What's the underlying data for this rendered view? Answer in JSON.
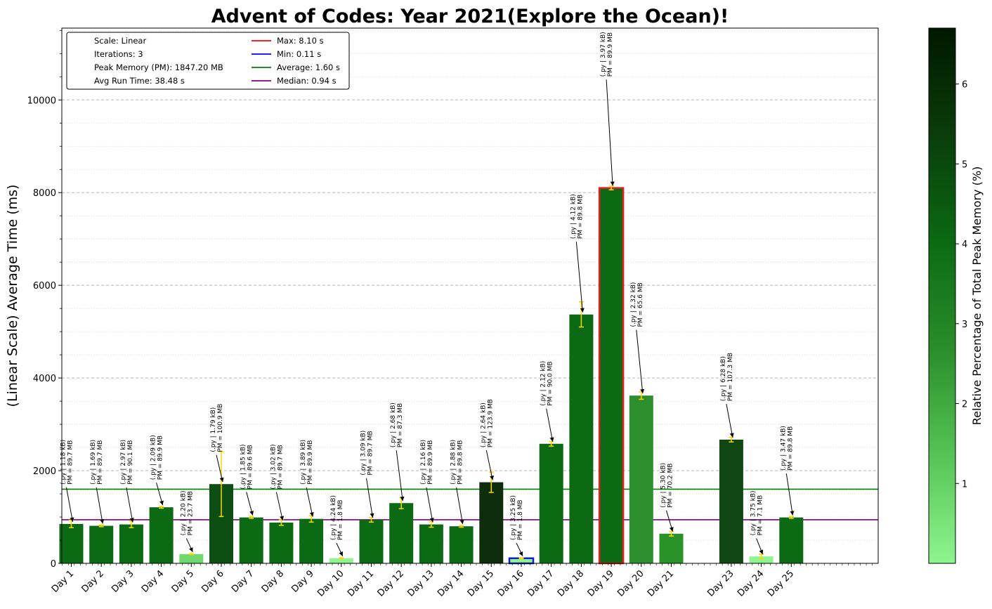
{
  "chart_data": {
    "type": "bar",
    "title": "Advent of Codes: Year 2021(Explore the Ocean)!",
    "ylabel": "(Linear Scale) Average Time (ms)",
    "xlabel": "",
    "ylim": [
      0,
      11550
    ],
    "y_ticks": [
      0,
      2000,
      4000,
      6000,
      8000,
      10000
    ],
    "categories": [
      "Day 1",
      "Day 2",
      "Day 3",
      "Day 4",
      "Day 5",
      "Day 6",
      "Day 7",
      "Day 8",
      "Day 9",
      "Day 10",
      "Day 11",
      "Day 12",
      "Day 13",
      "Day 14",
      "Day 15",
      "Day 16",
      "Day 17",
      "Day 18",
      "Day 19",
      "Day 20",
      "Day 21",
      "Day 23",
      "Day 24",
      "Day 25"
    ],
    "slots": [
      1,
      2,
      3,
      4,
      5,
      6,
      7,
      8,
      9,
      10,
      11,
      12,
      13,
      14,
      15,
      16,
      17,
      18,
      19,
      20,
      21,
      23,
      24,
      25
    ],
    "values": [
      850,
      810,
      840,
      1210,
      200,
      1710,
      990,
      880,
      960,
      110,
      940,
      1300,
      840,
      800,
      1750,
      110,
      2580,
      5370,
      8100,
      3620,
      640,
      2670,
      150,
      990
    ],
    "errors": [
      80,
      20,
      70,
      20,
      10,
      700,
      20,
      60,
      70,
      10,
      50,
      120,
      60,
      20,
      220,
      10,
      50,
      270,
      40,
      80,
      50,
      50,
      50,
      20
    ],
    "colors": [
      "#0b6a13",
      "#0b6a13",
      "#0b6a13",
      "#0b6a13",
      "#6fd86f",
      "#0d4f12",
      "#0b6a13",
      "#0b6a13",
      "#0b6a13",
      "#8ff58f",
      "#0b6a13",
      "#0b6a13",
      "#0b6a13",
      "#0b6a13",
      "#0d2d0d",
      "#8ff58f",
      "#0b6a13",
      "#0b6a13",
      "#0b6a13",
      "#2c8e2c",
      "#299229",
      "#0f4612",
      "#8ff58f",
      "#0b6a13"
    ],
    "edges": [
      "none",
      "none",
      "none",
      "none",
      "none",
      "none",
      "none",
      "none",
      "none",
      "none",
      "none",
      "none",
      "none",
      "none",
      "none",
      "#1020d0",
      "none",
      "none",
      "#e02020",
      "none",
      "none",
      "none",
      "none",
      "none"
    ],
    "annot_lines1": [
      "(.py | 1.18 kB)",
      "(.py | 1.69 kB)",
      "(.py | 2.97 kB)",
      "(.py | 2.09 kB)",
      "(.py | 2.20 kB)",
      "(.py | 1.79 kB)",
      "(.py | 1.85 kB)",
      "(.py | 3.02 kB)",
      "(.py | 3.89 kB)",
      "(.py | 4.24 kB)",
      "(.py | 3.09 kB)",
      "(.py | 2.68 kB)",
      "(.py | 2.16 kB)",
      "(.py | 2.88 kB)",
      "(.py | 2.64 kB)",
      "(.py | 3.25 kB)",
      "(.py | 2.12 kB)",
      "(.py | 4.12 kB)",
      "(.py | 3.97 kB)",
      "(.py | 2.32 kB)",
      "(.py | 5.30 kB)",
      "(.py | 6.28 kB)",
      "(.py | 3.75 kB)",
      "(.py | 3.47 kB)"
    ],
    "annot_lines2": [
      "PM = 89.7 MB",
      "PM = 89.7 MB",
      "PM = 90.1 MB",
      "PM = 89.9 MB",
      "PM = 23.7 MB",
      "PM = 100.9 MB",
      "PM = 89.6 MB",
      "PM = 89.7 MB",
      "PM = 89.9 MB",
      "PM = 1.8 MB",
      "PM = 89.7 MB",
      "PM = 87.3 MB",
      "PM = 89.9 MB",
      "PM = 89.8 MB",
      "PM = 123.9 MB",
      "PM = 1.8 MB",
      "PM = 90.0 MB",
      "PM = 89.8 MB",
      "PM = 89.9 MB",
      "PM = 65.6 MB",
      "PM = 70.2 MB",
      "PM = 107.3 MB",
      "PM = 7.1 MB",
      "PM = 89.8 MB"
    ],
    "annot_y": [
      1700,
      1700,
      1700,
      1800,
      600,
      2400,
      1600,
      1600,
      1700,
      500,
      1900,
      2500,
      1700,
      1700,
      2500,
      500,
      3400,
      7000,
      10500,
      5100,
      1200,
      3500,
      600,
      2000
    ],
    "hlines": [
      {
        "label": "Max: 8.10 s",
        "value": 8100,
        "color": "#ff0000",
        "draw": false
      },
      {
        "label": "Min: 0.11 s",
        "value": 110,
        "color": "#0000ff",
        "draw": false
      },
      {
        "label": "Average: 1.60 s",
        "value": 1600,
        "color": "#008000",
        "draw": true
      },
      {
        "label": "Median: 0.94 s",
        "value": 940,
        "color": "#800080",
        "draw": true
      }
    ],
    "legend_text": [
      "Scale: Linear",
      "Iterations: 3",
      "Peak Memory (PM): 1847.20 MB",
      "Avg Run Time: 38.48 s"
    ],
    "legend_position": "top-left",
    "grid": true,
    "colorbar": {
      "label": "Relative Percentage of Total Peak Memory (%)",
      "min": 0,
      "max": 6.7,
      "ticks": [
        1,
        2,
        3,
        4,
        5,
        6
      ],
      "colors": [
        "#8ff58f",
        "#56c456",
        "#2a8e2a",
        "#0b6a13",
        "#0a3d0a",
        "#001800"
      ]
    }
  }
}
